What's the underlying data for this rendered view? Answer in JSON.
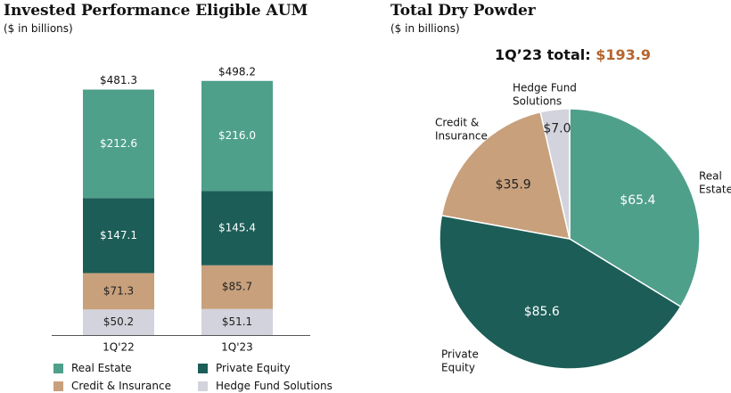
{
  "left": {
    "title": "Invested Performance Eligible AUM",
    "subtitle": "($ in billions)"
  },
  "right": {
    "title": "Total Dry Powder",
    "subtitle": "($ in billions)",
    "total_label": "1Q’23 total:",
    "total_value": "$193.9"
  },
  "colors": {
    "real_estate": "#4fa08b",
    "private_equity": "#1c5d57",
    "credit_insurance": "#c8a07c",
    "hedge_fund": "#d2d3dc"
  },
  "legend": [
    {
      "label": "Real Estate",
      "color_key": "real_estate"
    },
    {
      "label": "Private Equity",
      "color_key": "private_equity"
    },
    {
      "label": "Credit & Insurance",
      "color_key": "credit_insurance"
    },
    {
      "label": "Hedge Fund Solutions",
      "color_key": "hedge_fund"
    }
  ],
  "chart_data": [
    {
      "type": "bar",
      "stacked": true,
      "categories": [
        "1Q'22",
        "1Q'23"
      ],
      "totals": [
        "$481.3",
        "$498.2"
      ],
      "series": [
        {
          "name": "Hedge Fund Solutions",
          "color_key": "hedge_fund",
          "values": [
            50.2,
            51.1
          ],
          "labels": [
            "$50.2",
            "$51.1"
          ]
        },
        {
          "name": "Credit & Insurance",
          "color_key": "credit_insurance",
          "values": [
            71.3,
            85.7
          ],
          "labels": [
            "$71.3",
            "$85.7"
          ]
        },
        {
          "name": "Private Equity",
          "color_key": "private_equity",
          "values": [
            147.1,
            145.4
          ],
          "labels": [
            "$147.1",
            "$145.4"
          ]
        },
        {
          "name": "Real Estate",
          "color_key": "real_estate",
          "values": [
            212.6,
            216.0
          ],
          "labels": [
            "$212.6",
            "$216.0"
          ]
        }
      ]
    },
    {
      "type": "pie",
      "slices": [
        {
          "name_lines": [
            "Real",
            "Estate"
          ],
          "value": 65.4,
          "label": "$65.4",
          "color_key": "real_estate"
        },
        {
          "name_lines": [
            "Private",
            "Equity"
          ],
          "value": 85.6,
          "label": "$85.6",
          "color_key": "private_equity"
        },
        {
          "name_lines": [
            "Credit &",
            "Insurance"
          ],
          "value": 35.9,
          "label": "$35.9",
          "color_key": "credit_insurance"
        },
        {
          "name_lines": [
            "Hedge Fund",
            "Solutions"
          ],
          "value": 7.0,
          "label": "$7.0",
          "color_key": "hedge_fund"
        }
      ]
    }
  ]
}
